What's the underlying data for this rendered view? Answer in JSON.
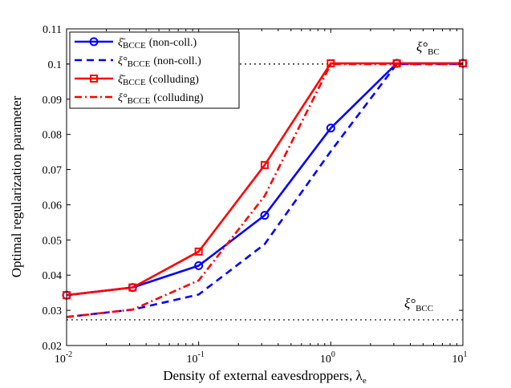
{
  "chart_data": {
    "type": "line",
    "xscale": "log",
    "xlim": [
      0.01,
      10
    ],
    "ylim": [
      0.02,
      0.11
    ],
    "xlabel": "Density of external eavesdroppers, λ",
    "xlabel_sub": "e",
    "ylabel": "Optimal regularization parameter",
    "x_ticks": [
      {
        "value": 0.01,
        "base": "10",
        "exp": "-2"
      },
      {
        "value": 0.1,
        "base": "10",
        "exp": "-1"
      },
      {
        "value": 1,
        "base": "10",
        "exp": "0"
      },
      {
        "value": 10,
        "base": "10",
        "exp": "1"
      }
    ],
    "y_ticks": [
      {
        "value": 0.02,
        "label": "0.02"
      },
      {
        "value": 0.03,
        "label": "0.03"
      },
      {
        "value": 0.04,
        "label": "0.04"
      },
      {
        "value": 0.05,
        "label": "0.05"
      },
      {
        "value": 0.06,
        "label": "0.06"
      },
      {
        "value": 0.07,
        "label": "0.07"
      },
      {
        "value": 0.08,
        "label": "0.08"
      },
      {
        "value": 0.09,
        "label": "0.09"
      },
      {
        "value": 0.1,
        "label": "0.1"
      },
      {
        "value": 0.11,
        "label": "0.11"
      }
    ],
    "series": [
      {
        "name": "xi-bar-bcce-noncoll",
        "symbol": "ξ̄",
        "sub": "BCCE",
        "qualifier": "(non-coll.)",
        "color": "#0000ff",
        "style": "solid",
        "marker": "circle",
        "x": [
          0.01,
          0.0316,
          0.1,
          0.316,
          1,
          3.16,
          10
        ],
        "y": [
          0.0343,
          0.0365,
          0.0427,
          0.057,
          0.0818,
          0.1002,
          0.1002
        ]
      },
      {
        "name": "xi-circ-bcce-noncoll",
        "symbol": "ξ°",
        "sub": "BCCE",
        "qualifier": "(non-coll.)",
        "color": "#0000ff",
        "style": "dashed",
        "marker": "none",
        "x": [
          0.01,
          0.0316,
          0.1,
          0.316,
          1,
          3.16,
          10
        ],
        "y": [
          0.0281,
          0.0302,
          0.0345,
          0.0488,
          0.0752,
          0.1,
          0.1
        ]
      },
      {
        "name": "xi-bar-bcce-coll",
        "symbol": "ξ̄",
        "sub": "BCCE",
        "qualifier": "(colluding)",
        "color": "#ff0000",
        "style": "solid",
        "marker": "square",
        "x": [
          0.01,
          0.0316,
          0.1,
          0.316,
          1,
          3.16,
          10
        ],
        "y": [
          0.0343,
          0.0365,
          0.0467,
          0.0713,
          0.1002,
          0.1002,
          0.1002
        ]
      },
      {
        "name": "xi-circ-bcce-coll",
        "symbol": "ξ°",
        "sub": "BCCE",
        "qualifier": "(colluding)",
        "color": "#ff0000",
        "style": "dashdot",
        "marker": "none",
        "x": [
          0.01,
          0.0316,
          0.1,
          0.316,
          1,
          3.16,
          10
        ],
        "y": [
          0.0281,
          0.0302,
          0.0385,
          0.0625,
          0.1,
          0.1,
          0.1
        ]
      }
    ],
    "reference_lines": [
      {
        "name": "xi-bc",
        "symbol": "ξ°",
        "sub": "BC",
        "y": 0.1,
        "x_from": 0.01,
        "x_to": 10,
        "style": "dotted",
        "label_position": "above-right"
      },
      {
        "name": "xi-bcc",
        "symbol": "ξ°",
        "sub": "BCC",
        "y": 0.0273,
        "x_from": 0.01,
        "x_to": 10,
        "style": "dotted",
        "label_position": "above-right"
      }
    ],
    "legend_position": "top-left"
  }
}
